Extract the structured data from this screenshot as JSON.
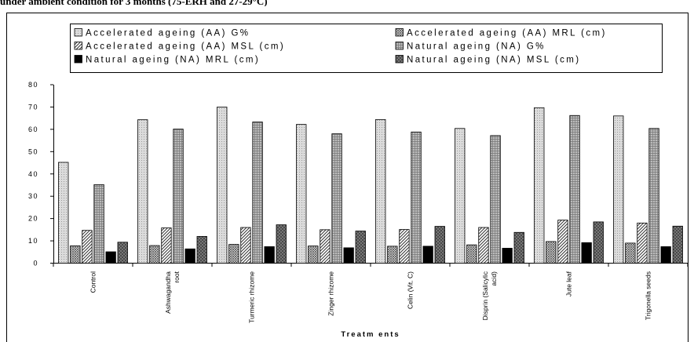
{
  "caption": "under ambient condition for 3 months (75-ERH and 27-29°C)",
  "chart_data": {
    "type": "bar",
    "title": "",
    "xlabel": "Treatm ents",
    "ylabel": "",
    "ylim": [
      0,
      80
    ],
    "yticks": [
      "0",
      "10",
      "20",
      "30",
      "40",
      "50",
      "60",
      "70",
      "80"
    ],
    "grid": false,
    "legend_position": "top",
    "categories": [
      [
        "Control"
      ],
      [
        "Ashwagandha",
        "root"
      ],
      [
        "Turmeric rhizome"
      ],
      [
        "Zinger rhizome"
      ],
      [
        "Celin (Vit. C)"
      ],
      [
        "Disprin (Salicylic",
        "acid)"
      ],
      [
        "Jute leaf"
      ],
      [
        "Trigonella seeds"
      ]
    ],
    "series": [
      {
        "name": "Accelerated ageing (AA) G%",
        "values": [
          45.2,
          64.3,
          70.0,
          62.2,
          64.4,
          60.4,
          69.7,
          66.0
        ]
      },
      {
        "name": "Accelerated ageing (AA) MRL (cm)",
        "values": [
          7.8,
          7.9,
          8.4,
          7.7,
          7.6,
          8.2,
          9.7,
          9.0
        ]
      },
      {
        "name": "Accelerated ageing (AA) MSL (cm)",
        "values": [
          14.7,
          15.8,
          16.0,
          15.0,
          15.1,
          16.0,
          19.3,
          18.0
        ]
      },
      {
        "name": "Natural ageing (NA) G%",
        "values": [
          35.2,
          60.1,
          63.3,
          58.0,
          58.8,
          57.2,
          66.2,
          60.4
        ]
      },
      {
        "name": "Natural ageing (NA) MRL (cm)",
        "values": [
          5.1,
          6.4,
          7.4,
          6.9,
          7.6,
          6.7,
          9.2,
          7.4
        ]
      },
      {
        "name": "Natural ageing (NA) MSL (cm)",
        "values": [
          9.4,
          12.0,
          17.2,
          14.4,
          16.5,
          13.8,
          18.5,
          16.6
        ]
      }
    ],
    "legend_labels": [
      "Accelerated ageing (AA) G%",
      "Accelerated ageing (AA) MRL (cm)",
      "Accelerated ageing (AA) MSL (cm)",
      "Natural ageing (NA) G%",
      "Natural ageing (NA) MRL (cm)",
      "Natural ageing (NA) MSL (cm)"
    ]
  }
}
